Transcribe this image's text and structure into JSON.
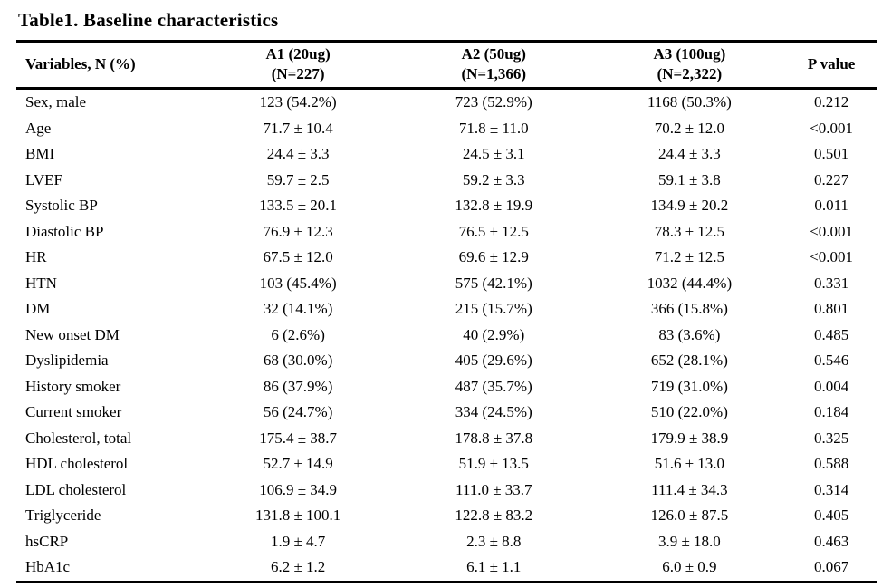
{
  "title": "Table1. Baseline characteristics",
  "colors": {
    "text": "#000000",
    "background": "#ffffff",
    "rule": "#000000"
  },
  "table": {
    "header": {
      "variables_label": "Variables, N (%)",
      "groups": [
        {
          "line1": "A1 (20ug)",
          "line2": "(N=227)"
        },
        {
          "line1": "A2 (50ug)",
          "line2": "(N=1,366)"
        },
        {
          "line1": "A3 (100ug)",
          "line2": "(N=2,322)"
        }
      ],
      "p_label": "P value"
    },
    "rows": [
      {
        "variable": "Sex, male",
        "a1": "123 (54.2%)",
        "a2": "723 (52.9%)",
        "a3": "1168 (50.3%)",
        "p": "0.212"
      },
      {
        "variable": "Age",
        "a1": "71.7 ± 10.4",
        "a2": "71.8 ± 11.0",
        "a3": "70.2 ± 12.0",
        "p": "<0.001"
      },
      {
        "variable": "BMI",
        "a1": "24.4 ± 3.3",
        "a2": "24.5 ± 3.1",
        "a3": "24.4 ± 3.3",
        "p": "0.501"
      },
      {
        "variable": "LVEF",
        "a1": "59.7 ± 2.5",
        "a2": "59.2 ± 3.3",
        "a3": "59.1 ± 3.8",
        "p": "0.227"
      },
      {
        "variable": "Systolic BP",
        "a1": "133.5 ± 20.1",
        "a2": "132.8 ± 19.9",
        "a3": "134.9 ± 20.2",
        "p": "0.011"
      },
      {
        "variable": "Diastolic BP",
        "a1": "76.9 ± 12.3",
        "a2": "76.5 ± 12.5",
        "a3": "78.3 ± 12.5",
        "p": "<0.001"
      },
      {
        "variable": "HR",
        "a1": "67.5 ± 12.0",
        "a2": "69.6 ± 12.9",
        "a3": "71.2 ± 12.5",
        "p": "<0.001"
      },
      {
        "variable": "HTN",
        "a1": "103 (45.4%)",
        "a2": "575 (42.1%)",
        "a3": "1032 (44.4%)",
        "p": "0.331"
      },
      {
        "variable": "DM",
        "a1": "32 (14.1%)",
        "a2": "215 (15.7%)",
        "a3": "366 (15.8%)",
        "p": "0.801"
      },
      {
        "variable": "New onset DM",
        "a1": "6 (2.6%)",
        "a2": "40 (2.9%)",
        "a3": "83 (3.6%)",
        "p": "0.485"
      },
      {
        "variable": "Dyslipidemia",
        "a1": "68 (30.0%)",
        "a2": "405 (29.6%)",
        "a3": "652 (28.1%)",
        "p": "0.546"
      },
      {
        "variable": "History smoker",
        "a1": "86 (37.9%)",
        "a2": "487 (35.7%)",
        "a3": "719 (31.0%)",
        "p": "0.004"
      },
      {
        "variable": "Current smoker",
        "a1": "56 (24.7%)",
        "a2": "334 (24.5%)",
        "a3": "510 (22.0%)",
        "p": "0.184"
      },
      {
        "variable": "Cholesterol, total",
        "a1": "175.4 ± 38.7",
        "a2": "178.8 ± 37.8",
        "a3": "179.9 ± 38.9",
        "p": "0.325"
      },
      {
        "variable": "HDL cholesterol",
        "a1": "52.7 ± 14.9",
        "a2": "51.9 ± 13.5",
        "a3": "51.6 ± 13.0",
        "p": "0.588"
      },
      {
        "variable": "LDL cholesterol",
        "a1": "106.9 ± 34.9",
        "a2": "111.0 ± 33.7",
        "a3": "111.4 ± 34.3",
        "p": "0.314"
      },
      {
        "variable": "Triglyceride",
        "a1": "131.8 ± 100.1",
        "a2": "122.8 ± 83.2",
        "a3": "126.0 ± 87.5",
        "p": "0.405"
      },
      {
        "variable": "hsCRP",
        "a1": "1.9 ± 4.7",
        "a2": "2.3 ± 8.8",
        "a3": "3.9 ± 18.0",
        "p": "0.463"
      },
      {
        "variable": "HbA1c",
        "a1": "6.2 ± 1.2",
        "a2": "6.1 ± 1.1",
        "a3": "6.0 ± 0.9",
        "p": "0.067"
      }
    ]
  }
}
